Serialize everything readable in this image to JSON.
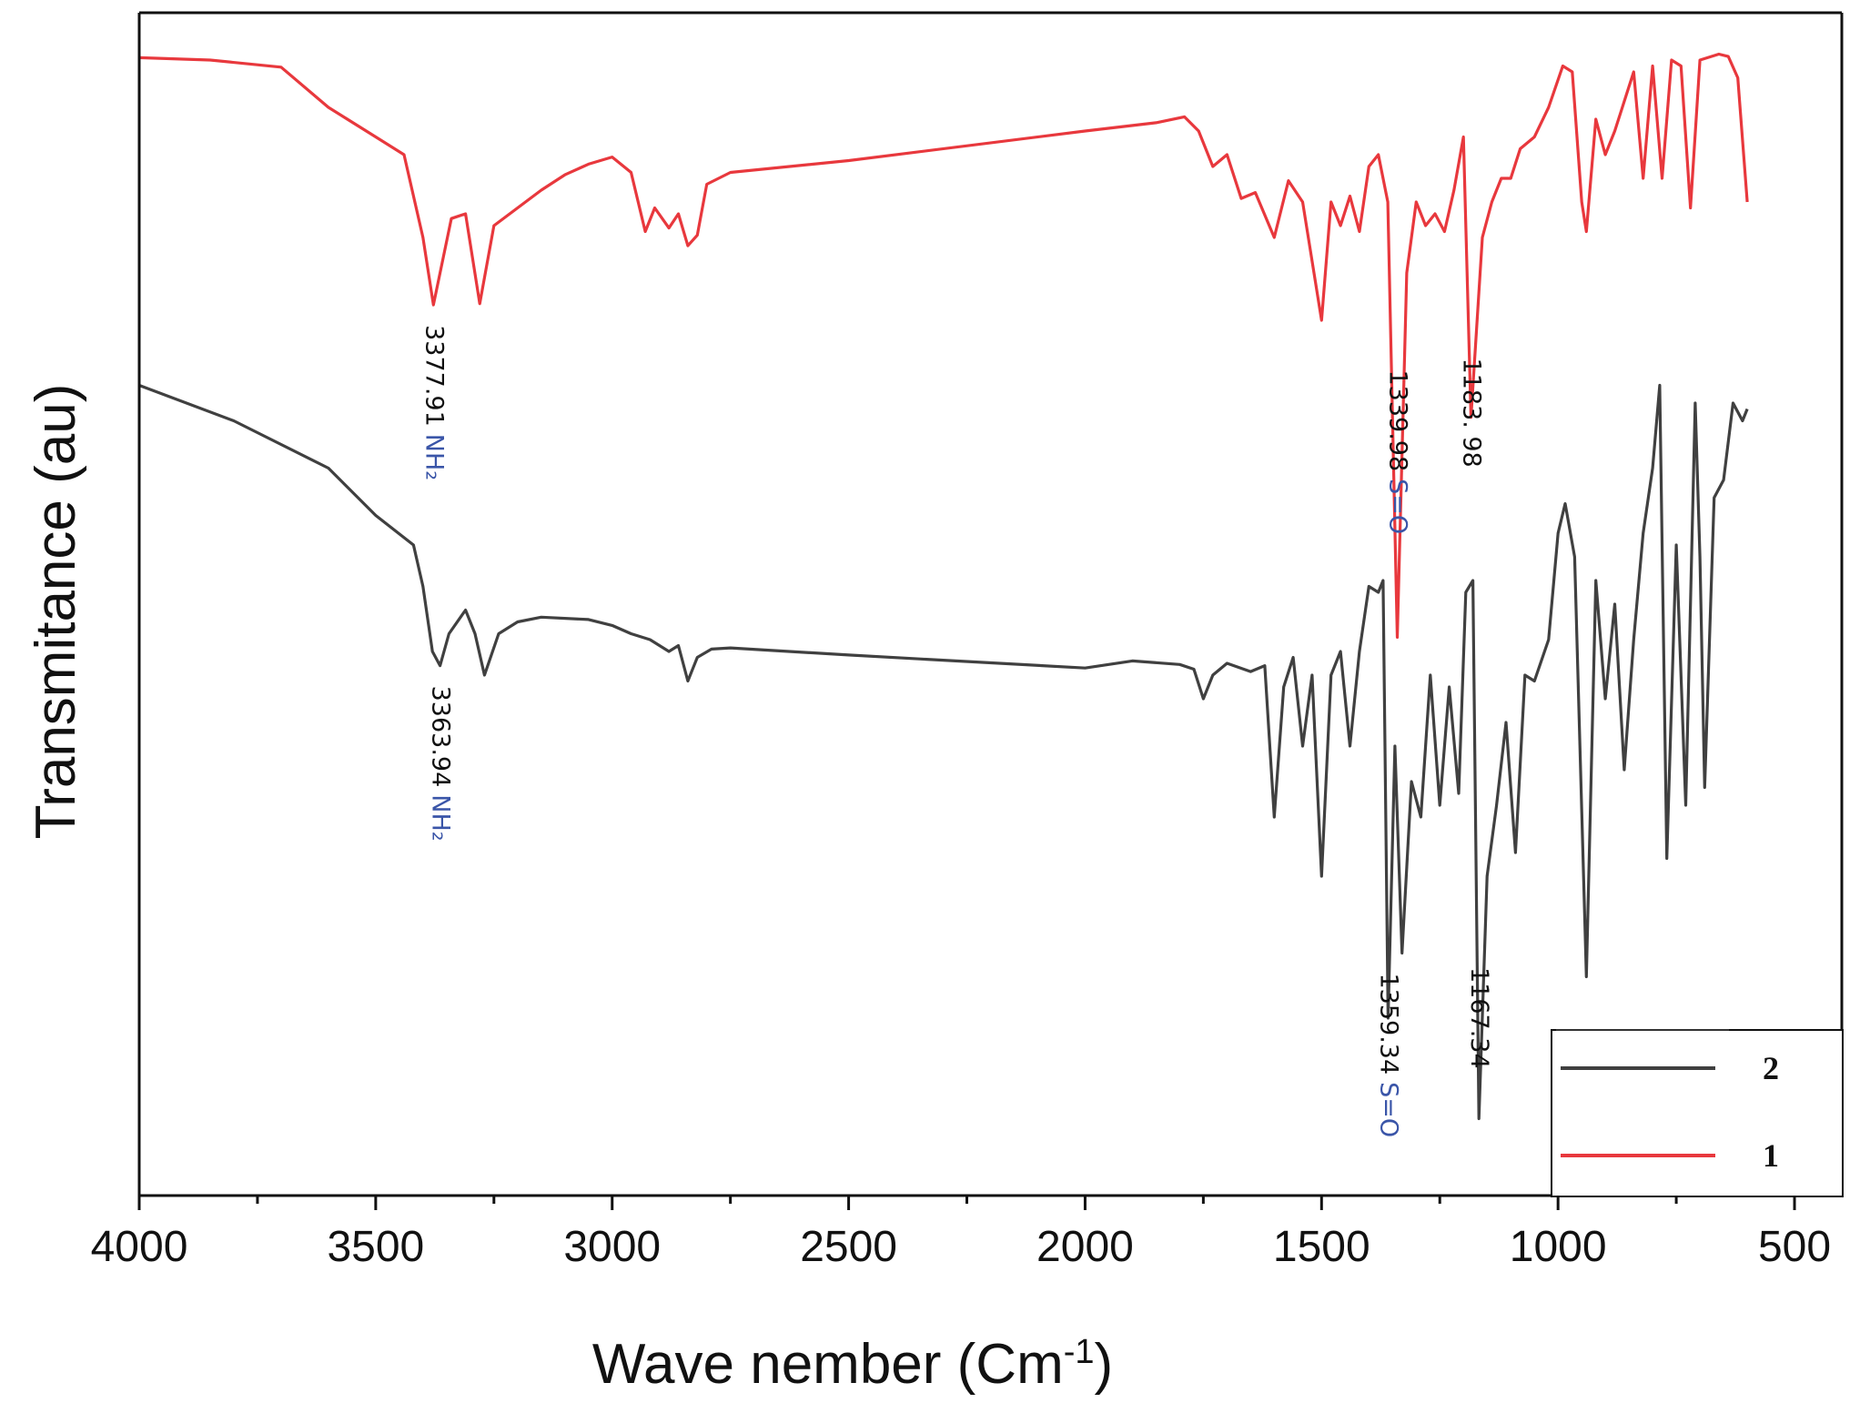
{
  "chart_data": {
    "type": "line",
    "title": "",
    "xlabel": "Wave nember (Cm",
    "xlabel_sup": "-1",
    "xlabel_end": ")",
    "ylabel": "Transmitance (au)",
    "xlim": [
      4000,
      400
    ],
    "ylim": [
      0,
      100
    ],
    "xticks": [
      4000,
      3500,
      3000,
      2500,
      2000,
      1500,
      1000,
      500
    ],
    "yticks_shown": false,
    "legend_position": "bottom-right",
    "series": [
      {
        "name": "1",
        "color": "#e8383d",
        "points": [
          [
            4000,
            96.2
          ],
          [
            3850,
            96.0
          ],
          [
            3700,
            95.4
          ],
          [
            3600,
            92.0
          ],
          [
            3500,
            89.5
          ],
          [
            3440,
            88.0
          ],
          [
            3400,
            81.0
          ],
          [
            3377.91,
            75.3
          ],
          [
            3340,
            82.6
          ],
          [
            3310,
            83.0
          ],
          [
            3280,
            75.4
          ],
          [
            3250,
            82.0
          ],
          [
            3200,
            83.5
          ],
          [
            3150,
            85.0
          ],
          [
            3100,
            86.3
          ],
          [
            3050,
            87.2
          ],
          [
            3000,
            87.8
          ],
          [
            2960,
            86.5
          ],
          [
            2930,
            81.5
          ],
          [
            2910,
            83.5
          ],
          [
            2880,
            81.8
          ],
          [
            2860,
            83.0
          ],
          [
            2840,
            80.3
          ],
          [
            2820,
            81.2
          ],
          [
            2800,
            85.5
          ],
          [
            2750,
            86.5
          ],
          [
            2500,
            87.5
          ],
          [
            2000,
            90.0
          ],
          [
            1850,
            90.7
          ],
          [
            1790,
            91.2
          ],
          [
            1760,
            90.0
          ],
          [
            1730,
            87.0
          ],
          [
            1700,
            88.0
          ],
          [
            1670,
            84.3
          ],
          [
            1640,
            84.8
          ],
          [
            1600,
            81.0
          ],
          [
            1570,
            85.8
          ],
          [
            1540,
            84.0
          ],
          [
            1500,
            74.0
          ],
          [
            1480,
            84.0
          ],
          [
            1460,
            82.0
          ],
          [
            1440,
            84.5
          ],
          [
            1420,
            81.5
          ],
          [
            1400,
            87.0
          ],
          [
            1380,
            88.0
          ],
          [
            1360,
            84.0
          ],
          [
            1339.98,
            47.2
          ],
          [
            1320,
            78.0
          ],
          [
            1300,
            84.0
          ],
          [
            1280,
            82.0
          ],
          [
            1260,
            83.0
          ],
          [
            1240,
            81.5
          ],
          [
            1220,
            85.0
          ],
          [
            1200,
            89.5
          ],
          [
            1183.98,
            65.8
          ],
          [
            1160,
            81.0
          ],
          [
            1140,
            84.0
          ],
          [
            1120,
            86.0
          ],
          [
            1100,
            86.0
          ],
          [
            1080,
            88.5
          ],
          [
            1050,
            89.5
          ],
          [
            1020,
            92.0
          ],
          [
            990,
            95.5
          ],
          [
            970,
            95.0
          ],
          [
            950,
            84.0
          ],
          [
            940,
            81.5
          ],
          [
            920,
            91.0
          ],
          [
            900,
            88.0
          ],
          [
            880,
            90.0
          ],
          [
            860,
            92.5
          ],
          [
            840,
            95.0
          ],
          [
            820,
            86.0
          ],
          [
            800,
            95.5
          ],
          [
            780,
            86.0
          ],
          [
            760,
            96.0
          ],
          [
            740,
            95.5
          ],
          [
            720,
            83.5
          ],
          [
            700,
            96.0
          ],
          [
            660,
            96.5
          ],
          [
            640,
            96.3
          ],
          [
            620,
            94.5
          ],
          [
            600,
            84.0
          ]
        ]
      },
      {
        "name": "2",
        "color": "#404040",
        "points": [
          [
            4000,
            68.5
          ],
          [
            3800,
            65.5
          ],
          [
            3600,
            61.5
          ],
          [
            3500,
            57.5
          ],
          [
            3420,
            55.0
          ],
          [
            3400,
            51.5
          ],
          [
            3380,
            46.0
          ],
          [
            3363.94,
            44.8
          ],
          [
            3345,
            47.5
          ],
          [
            3310,
            49.5
          ],
          [
            3290,
            47.5
          ],
          [
            3270,
            44.0
          ],
          [
            3240,
            47.5
          ],
          [
            3200,
            48.5
          ],
          [
            3150,
            48.9
          ],
          [
            3050,
            48.7
          ],
          [
            3000,
            48.2
          ],
          [
            2960,
            47.5
          ],
          [
            2920,
            47.0
          ],
          [
            2880,
            46.0
          ],
          [
            2860,
            46.5
          ],
          [
            2840,
            43.5
          ],
          [
            2820,
            45.5
          ],
          [
            2790,
            46.2
          ],
          [
            2750,
            46.3
          ],
          [
            2500,
            45.7
          ],
          [
            2000,
            44.6
          ],
          [
            1900,
            45.2
          ],
          [
            1800,
            44.9
          ],
          [
            1770,
            44.5
          ],
          [
            1750,
            42.0
          ],
          [
            1730,
            44.0
          ],
          [
            1700,
            45.0
          ],
          [
            1650,
            44.3
          ],
          [
            1620,
            44.8
          ],
          [
            1600,
            32.0
          ],
          [
            1580,
            43.0
          ],
          [
            1560,
            45.5
          ],
          [
            1540,
            38.0
          ],
          [
            1520,
            44.0
          ],
          [
            1500,
            27.0
          ],
          [
            1480,
            44.0
          ],
          [
            1460,
            46.0
          ],
          [
            1440,
            38.0
          ],
          [
            1420,
            46.0
          ],
          [
            1400,
            51.5
          ],
          [
            1380,
            51.0
          ],
          [
            1370,
            52.0
          ],
          [
            1359.34,
            15.0
          ],
          [
            1345,
            38.0
          ],
          [
            1330,
            20.5
          ],
          [
            1310,
            35.0
          ],
          [
            1290,
            32.0
          ],
          [
            1270,
            44.0
          ],
          [
            1250,
            33.0
          ],
          [
            1230,
            43.0
          ],
          [
            1210,
            34.0
          ],
          [
            1195,
            51.0
          ],
          [
            1180,
            52.0
          ],
          [
            1167.34,
            6.5
          ],
          [
            1150,
            27.0
          ],
          [
            1130,
            33.0
          ],
          [
            1110,
            40.0
          ],
          [
            1090,
            29.0
          ],
          [
            1070,
            44.0
          ],
          [
            1050,
            43.5
          ],
          [
            1020,
            47.0
          ],
          [
            1000,
            56.0
          ],
          [
            985,
            58.5
          ],
          [
            965,
            54.0
          ],
          [
            940,
            18.5
          ],
          [
            920,
            52.0
          ],
          [
            900,
            42.0
          ],
          [
            880,
            50.0
          ],
          [
            860,
            36.0
          ],
          [
            840,
            47.0
          ],
          [
            820,
            56.0
          ],
          [
            800,
            61.5
          ],
          [
            785,
            68.5
          ],
          [
            770,
            28.5
          ],
          [
            750,
            55.0
          ],
          [
            730,
            33.0
          ],
          [
            710,
            67.0
          ],
          [
            700,
            54.0
          ],
          [
            690,
            34.5
          ],
          [
            670,
            59.0
          ],
          [
            650,
            60.5
          ],
          [
            630,
            67.0
          ],
          [
            610,
            65.5
          ],
          [
            600,
            66.5
          ]
        ]
      }
    ],
    "annotations": [
      {
        "number": "3377.91",
        "group": "NH₂",
        "x": 3377.91,
        "y": 75.3,
        "series": "1"
      },
      {
        "number": "1339.98",
        "group": "S=O",
        "x": 1339.98,
        "y": 71.5,
        "series": "1"
      },
      {
        "number": "1183. 98",
        "group": "",
        "x": 1183.98,
        "y": 72.5,
        "series": "1"
      },
      {
        "number": "3363.94",
        "group": "NH₂",
        "x": 3363.94,
        "y": 44.8,
        "series": "2"
      },
      {
        "number": "1359.34",
        "group": "S=O",
        "x": 1359.34,
        "y": 20.5,
        "series": "2"
      },
      {
        "number": "1167.34",
        "group": "",
        "x": 1167.34,
        "y": 21.0,
        "series": "2"
      }
    ],
    "legend": [
      {
        "label": "2",
        "color": "#404040"
      },
      {
        "label": "1",
        "color": "#e8383d"
      }
    ]
  }
}
